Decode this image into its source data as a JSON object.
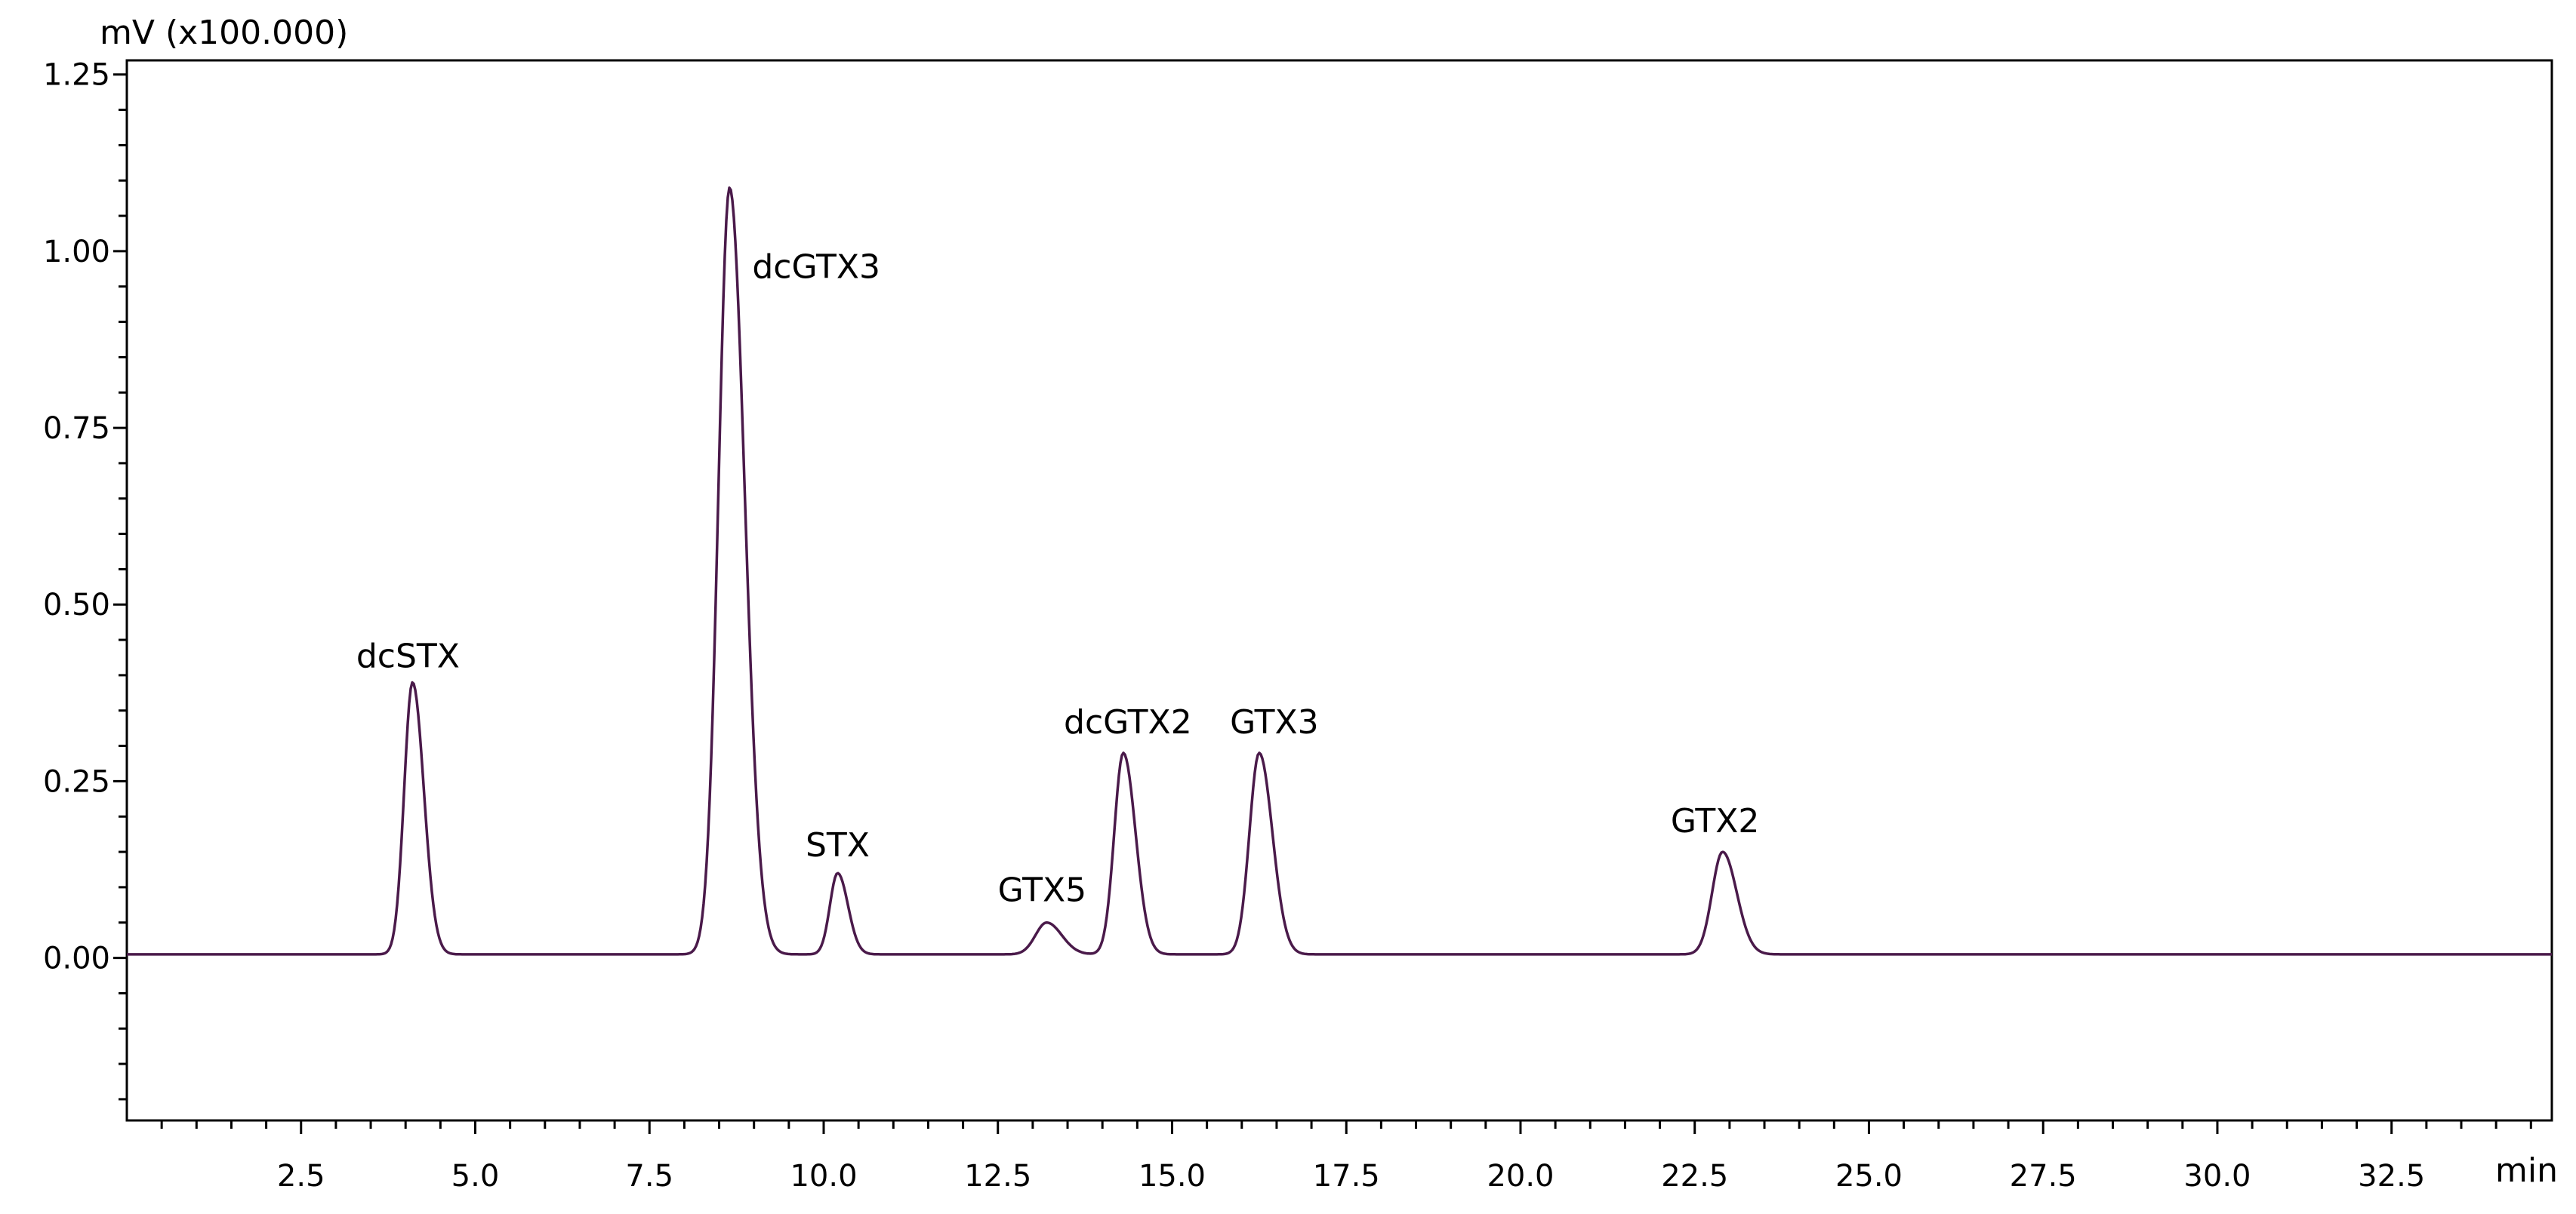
{
  "chart_data": {
    "type": "line",
    "title": "",
    "xlabel": "min",
    "ylabel": "mV (x100.000)",
    "xlim": [
      0,
      34.8
    ],
    "ylim": [
      -0.23,
      1.27
    ],
    "grid": false,
    "x_ticks": [
      {
        "value": 2.5,
        "label": "2.5"
      },
      {
        "value": 5.0,
        "label": "5.0"
      },
      {
        "value": 7.5,
        "label": "7.5"
      },
      {
        "value": 10.0,
        "label": "10.0"
      },
      {
        "value": 12.5,
        "label": "12.5"
      },
      {
        "value": 15.0,
        "label": "15.0"
      },
      {
        "value": 17.5,
        "label": "17.5"
      },
      {
        "value": 20.0,
        "label": "20.0"
      },
      {
        "value": 22.5,
        "label": "22.5"
      },
      {
        "value": 25.0,
        "label": "25.0"
      },
      {
        "value": 27.5,
        "label": "27.5"
      },
      {
        "value": 30.0,
        "label": "30.0"
      },
      {
        "value": 32.5,
        "label": "32.5"
      }
    ],
    "y_ticks": [
      {
        "value": 0.0,
        "label": "0.00"
      },
      {
        "value": 0.25,
        "label": "0.25"
      },
      {
        "value": 0.5,
        "label": "0.50"
      },
      {
        "value": 0.75,
        "label": "0.75"
      },
      {
        "value": 1.0,
        "label": "1.00"
      },
      {
        "value": 1.25,
        "label": "1.25"
      }
    ],
    "baseline": 0.005,
    "colors": {
      "trace": "#4a1a4a",
      "baseline": "#1a1a1a",
      "axis": "#000000"
    },
    "peaks": [
      {
        "name": "dcSTX",
        "x": 4.1,
        "y": 0.39
      },
      {
        "name": "dcGTX3",
        "x": 8.65,
        "y": 1.09
      },
      {
        "name": "STX",
        "x": 10.2,
        "y": 0.12
      },
      {
        "name": "GTX5",
        "x": 13.2,
        "y": 0.05
      },
      {
        "name": "dcGTX2",
        "x": 14.3,
        "y": 0.29
      },
      {
        "name": "GTX3",
        "x": 16.25,
        "y": 0.29
      },
      {
        "name": "GTX2",
        "x": 22.9,
        "y": 0.15
      }
    ]
  }
}
